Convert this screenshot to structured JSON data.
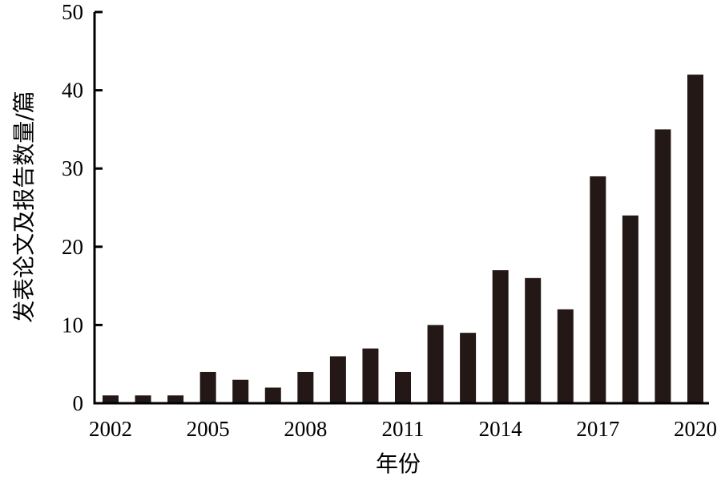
{
  "chart_data": {
    "type": "bar",
    "categories": [
      "2002",
      "2003",
      "2004",
      "2005",
      "2006",
      "2007",
      "2008",
      "2009",
      "2010",
      "2011",
      "2012",
      "2013",
      "2014",
      "2015",
      "2016",
      "2017",
      "2018",
      "2019",
      "2020"
    ],
    "values": [
      1,
      1,
      1,
      4,
      3,
      2,
      4,
      6,
      7,
      4,
      10,
      9,
      17,
      16,
      12,
      29,
      24,
      35,
      42
    ],
    "x_tick_labels": [
      "2002",
      "2005",
      "2008",
      "2011",
      "2014",
      "2017",
      "2020"
    ],
    "y_ticks": [
      0,
      10,
      20,
      30,
      40,
      50
    ],
    "ylim": [
      0,
      50
    ],
    "xlabel": "年份",
    "ylabel": "发表论文及报告数量/篇",
    "title": "",
    "grid": false,
    "bar_color": "#231815"
  }
}
